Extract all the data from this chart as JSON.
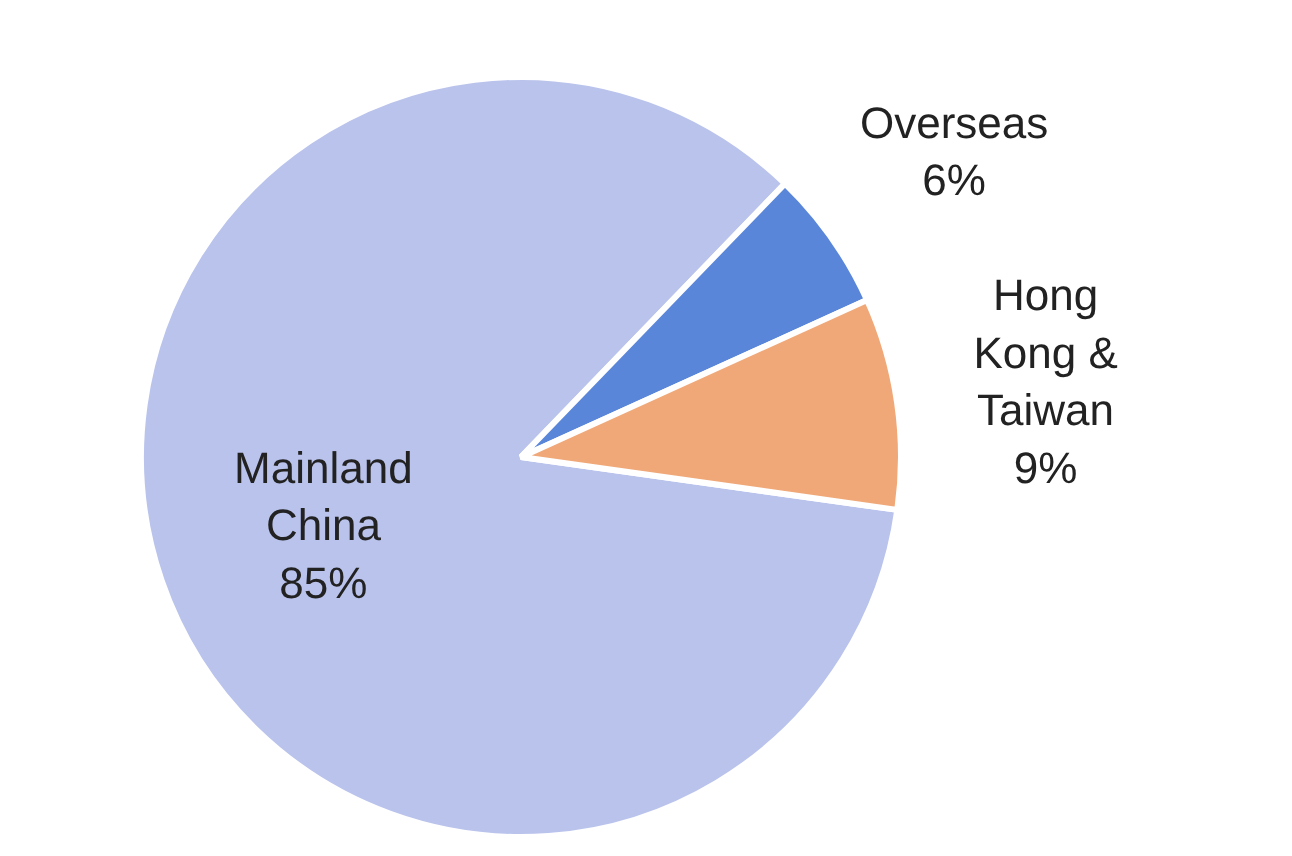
{
  "chart_data": {
    "type": "pie",
    "categories": [
      "Mainland China",
      "Overseas",
      "Hong Kong & Taiwan"
    ],
    "values": [
      85,
      6,
      9
    ],
    "value_labels": [
      "85%",
      "6%",
      "9%"
    ],
    "colors": [
      "#b9c3ec",
      "#5a86da",
      "#f0a878"
    ]
  }
}
